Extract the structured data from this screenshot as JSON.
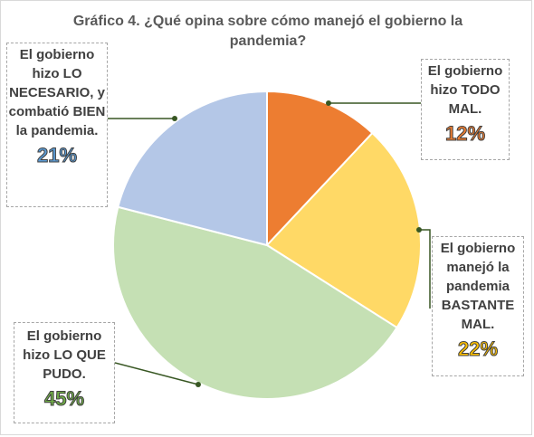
{
  "chart_data": {
    "type": "pie",
    "title": "Gráfico 4. ¿Qué opina sobre cómo manejó el gobierno la pandemia?",
    "slices": [
      {
        "label": "El gobierno hizo TODO MAL.",
        "value": 12,
        "pct_label": "12%",
        "color": "#ed7d31"
      },
      {
        "label": "El gobierno manejó la pandemia BASTANTE MAL.",
        "value": 22,
        "pct_label": "22%",
        "color": "#ffd966"
      },
      {
        "label": "El gobierno hizo LO QUE PUDO.",
        "value": 45,
        "pct_label": "45%",
        "color": "#c5e0b4"
      },
      {
        "label": "El gobierno hizo LO NECESARIO, y combatió BIEN la pandemia.",
        "value": 21,
        "pct_label": "21%",
        "color": "#b4c7e7"
      }
    ],
    "pct_colors": [
      "#ed7d31",
      "#ffc000",
      "#70ad47",
      "#5b9bd5"
    ],
    "start_angle_deg": 0,
    "direction": "clockwise",
    "legend": "none"
  }
}
